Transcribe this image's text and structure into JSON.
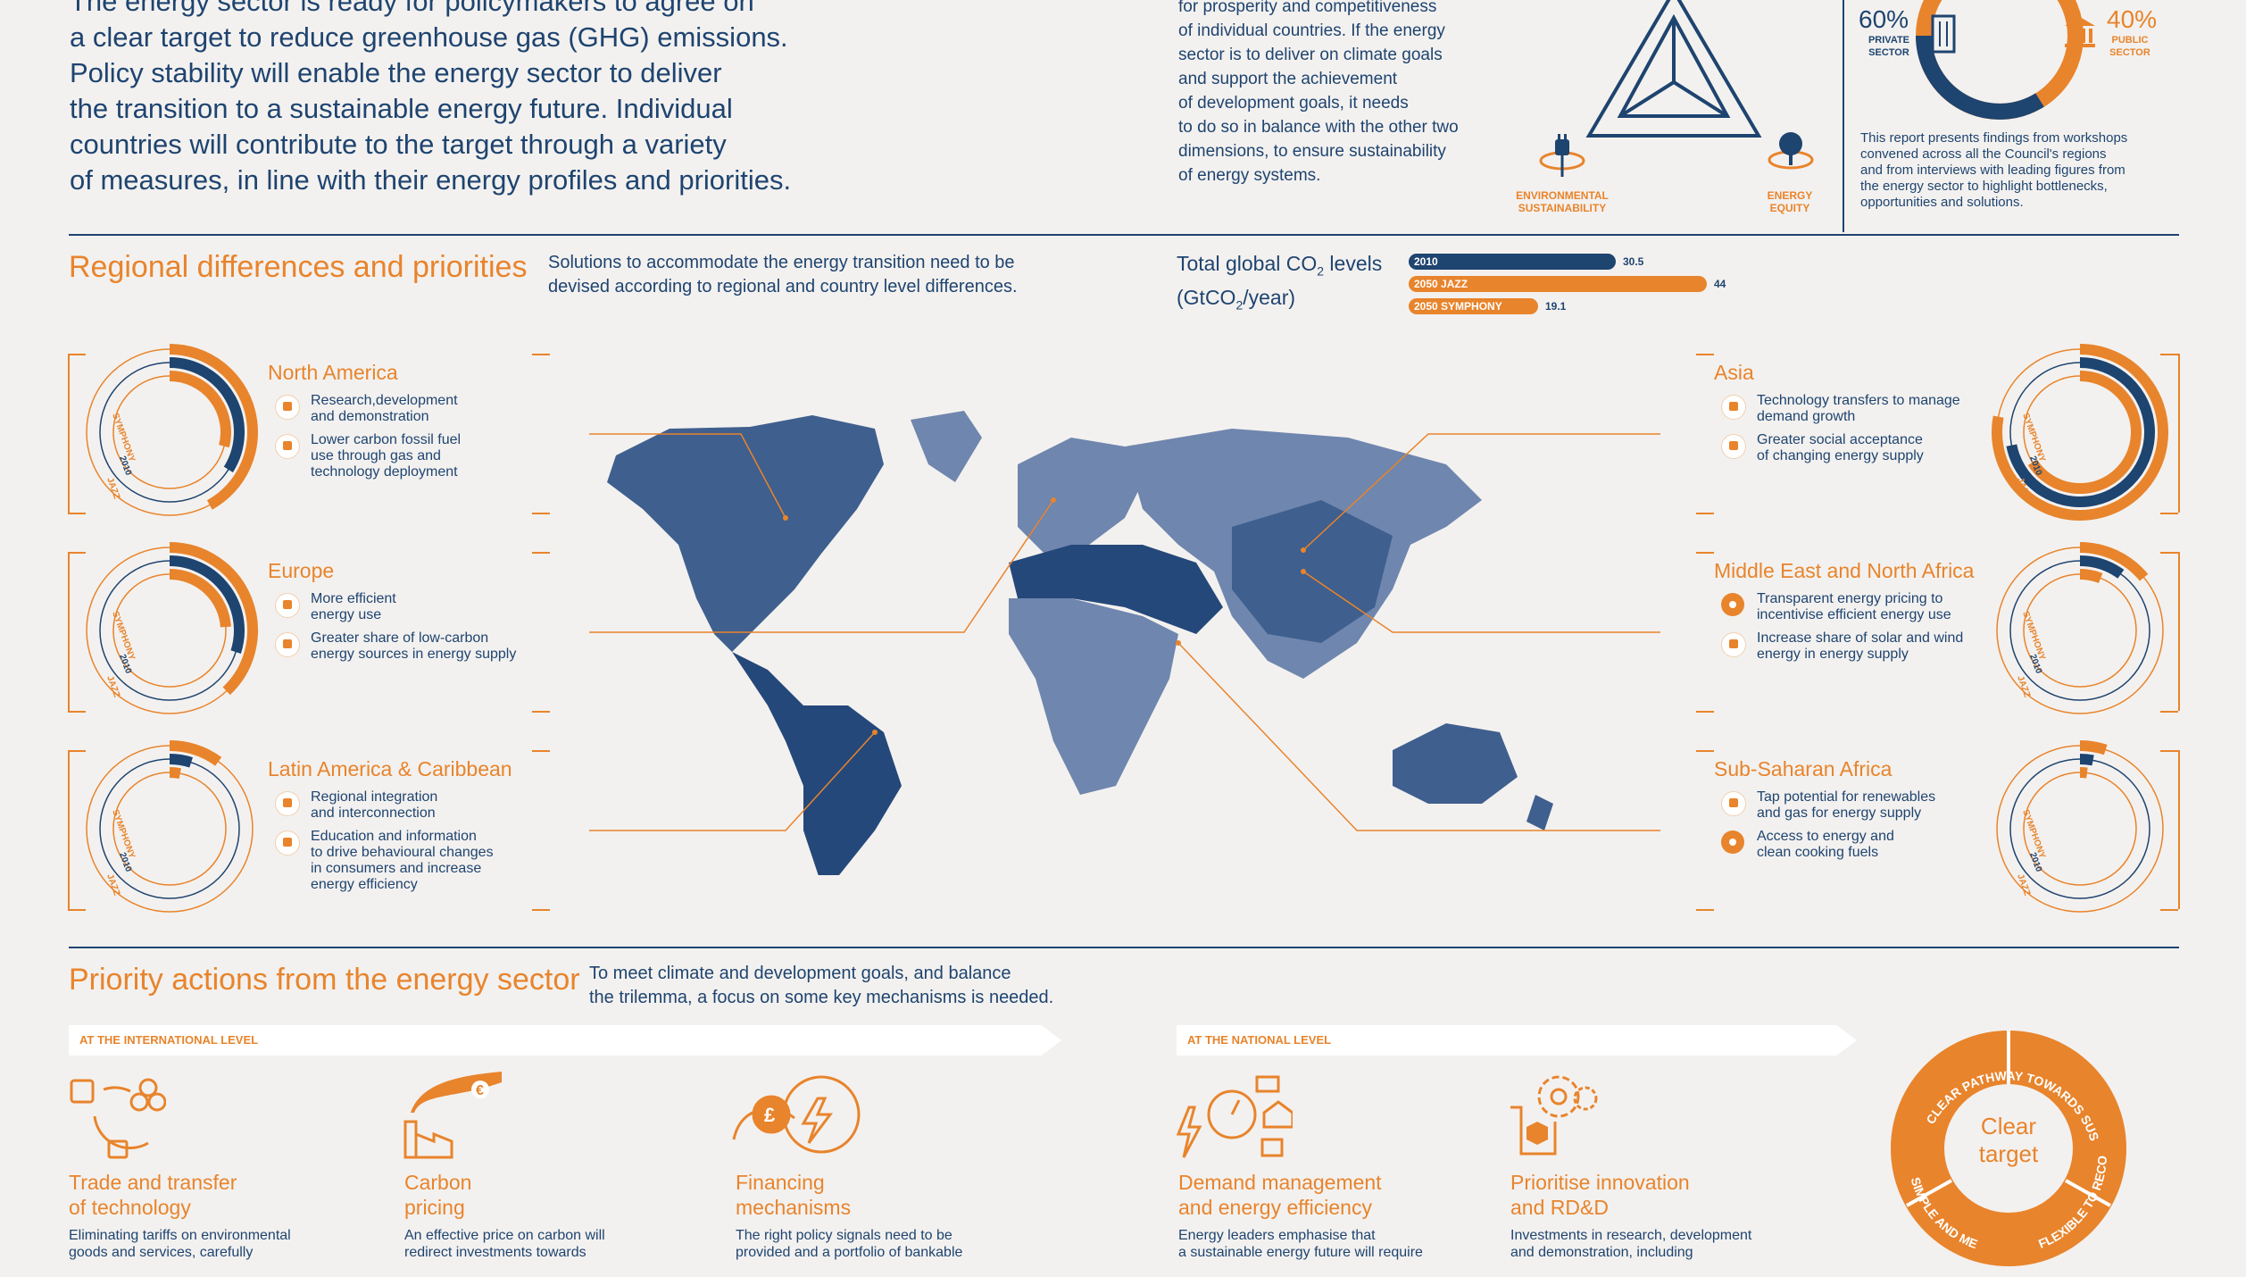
{
  "intro": {
    "lines": [
      "The energy sector is ready for policymakers to agree on",
      "a clear target to reduce greenhouse gas (GHG) emissions.",
      "Policy stability will enable the energy sector to deliver",
      "the transition to a sustainable energy future. Individual",
      "countries will contribute to the target through a variety",
      "of measures, in line with their energy profiles and priorities."
    ]
  },
  "trilemma": {
    "text_lines": [
      "for prosperity and competitiveness",
      "of individual countries. If the energy",
      "sector is to deliver on climate goals",
      "and support the achievement",
      "of development goals, it needs",
      "to do so in balance with the other two",
      "dimensions, to ensure sustainability",
      "of energy systems."
    ],
    "label_env_1": "ENVIRONMENTAL",
    "label_env_2": "SUSTAINABILITY",
    "label_eq_1": "ENERGY",
    "label_eq_2": "EQUITY"
  },
  "investment": {
    "private_pct": "60%",
    "private_label_1": "PRIVATE",
    "private_label_2": "SECTOR",
    "public_pct": "40%",
    "public_label_1": "PUBLIC",
    "public_label_2": "SECTOR",
    "text_lines": [
      "This report presents findings from workshops",
      "convened across all the Council's regions",
      "and from interviews with leading figures from",
      "the energy sector to highlight bottlenecks,",
      "opportunities and solutions."
    ]
  },
  "regional": {
    "title": "Regional differences and priorities",
    "desc_1": "Solutions to accommodate the energy transition need to be",
    "desc_2": "devised according to regional and country level differences.",
    "co2_label_1": "Total global CO",
    "co2_sub": "2",
    "co2_label_1b": " levels",
    "co2_label_2": "(GtCO",
    "co2_label_2b": "/year)"
  },
  "chart_data": {
    "type": "bar",
    "categories": [
      "2010",
      "2050 JAZZ",
      "2050 SYMPHONY"
    ],
    "values": [
      30.5,
      44,
      19.1
    ],
    "value_labels": [
      "30.5",
      "44",
      "19.1"
    ],
    "colors": [
      "#1e4470",
      "#e8842c",
      "#e8842c"
    ]
  },
  "regions": [
    {
      "name": "North America",
      "bullets": [
        [
          "Research,development",
          "and demonstration"
        ],
        [
          "Lower carbon fossil fuel",
          "use through gas and",
          "technology deployment"
        ]
      ],
      "ring_labels": [
        "SYMPHONY",
        "2010",
        "JAZZ"
      ]
    },
    {
      "name": "Europe",
      "bullets": [
        [
          "More efficient",
          "energy use"
        ],
        [
          "Greater share of low-carbon",
          "energy sources in energy supply"
        ]
      ],
      "ring_labels": [
        "SYMPHONY",
        "2010",
        "JAZZ"
      ]
    },
    {
      "name": "Latin America & Caribbean",
      "bullets": [
        [
          "Regional integration",
          "and interconnection"
        ],
        [
          "Education and information",
          "to drive behavioural changes",
          "in consumers and increase",
          "energy efficiency"
        ]
      ],
      "ring_labels": [
        "SYMPHONY",
        "2010",
        "JAZZ"
      ]
    },
    {
      "name": "Asia",
      "bullets": [
        [
          "Technology transfers to manage",
          "demand growth"
        ],
        [
          "Greater social acceptance",
          "of changing energy supply"
        ]
      ],
      "ring_labels": [
        "SYMPHONY",
        "2010",
        "JAZZ"
      ]
    },
    {
      "name": "Middle East and North Africa",
      "bullets": [
        [
          "Transparent energy pricing to",
          "incentivise efficient energy use"
        ],
        [
          "Increase share of solar and wind",
          "energy in energy supply"
        ]
      ],
      "ring_labels": [
        "SYMPHONY",
        "2010",
        "JAZZ"
      ]
    },
    {
      "name": "Sub-Saharan Africa",
      "bullets": [
        [
          "Tap potential for renewables",
          "and gas for energy supply"
        ],
        [
          "Access to energy and",
          "clean cooking fuels"
        ]
      ],
      "ring_labels": [
        "SYMPHONY",
        "2010",
        "JAZZ"
      ]
    }
  ],
  "priority": {
    "title": "Priority actions from the energy sector",
    "desc_1": "To meet climate and development goals, and balance",
    "desc_2": "the trilemma, a focus on some key mechanisms is needed.",
    "banner_international": "AT THE INTERNATIONAL LEVEL",
    "banner_national": "AT THE NATIONAL LEVEL",
    "actions": [
      {
        "title_1": "Trade and transfer",
        "title_2": "of technology",
        "text_1": "Eliminating tariffs on environmental",
        "text_2": "goods and services, carefully"
      },
      {
        "title_1": "Carbon",
        "title_2": "pricing",
        "text_1": "An effective price on carbon will",
        "text_2": "redirect investments towards"
      },
      {
        "title_1": "Financing",
        "title_2": "mechanisms",
        "text_1": "The right policy signals need to be",
        "text_2": "provided and a portfolio of bankable"
      },
      {
        "title_1": "Demand management",
        "title_2": "and energy efficiency",
        "text_1": "Energy leaders emphasise that",
        "text_2": "a sustainable energy future will require"
      },
      {
        "title_1": "Prioritise innovation",
        "title_2": "and RD&D",
        "text_1": "Investments in research, development",
        "text_2": "and demonstration, including"
      }
    ],
    "target_center_1": "Clear",
    "target_center_2": "target",
    "target_arc_top": "CLEAR PATHWAY TOWARDS SUSTAINABILITY",
    "target_arc_left": "SIMPLE AND MEASURABLE",
    "target_arc_right": "FLEXIBLE TO RECOGNISE DIFFERENCES"
  }
}
